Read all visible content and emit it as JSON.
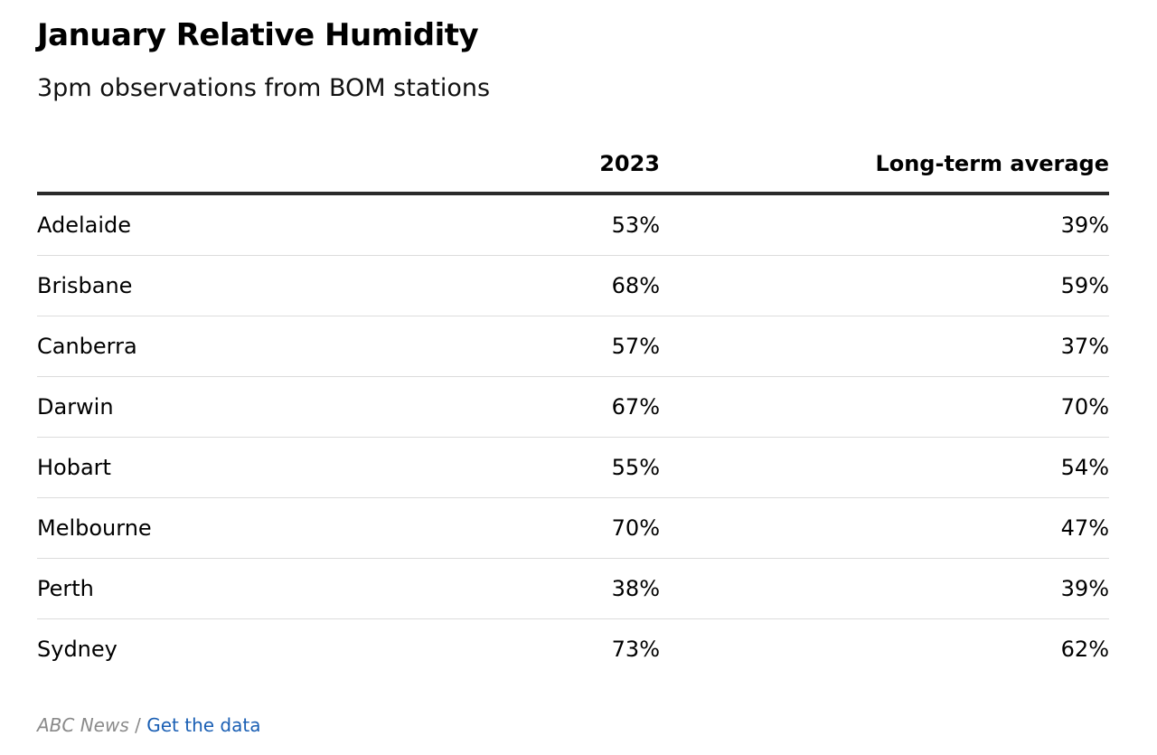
{
  "title": "January Relative Humidity",
  "subtitle": "3pm observations from BOM stations",
  "chart_data": {
    "type": "table",
    "title": "January Relative Humidity",
    "subtitle": "3pm observations from BOM stations",
    "columns": [
      "",
      "2023",
      "Long-term average"
    ],
    "rows": [
      {
        "city": "Adelaide",
        "y2023": "53%",
        "avg": "39%"
      },
      {
        "city": "Brisbane",
        "y2023": "68%",
        "avg": "59%"
      },
      {
        "city": "Canberra",
        "y2023": "57%",
        "avg": "37%"
      },
      {
        "city": "Darwin",
        "y2023": "67%",
        "avg": "70%"
      },
      {
        "city": "Hobart",
        "y2023": "55%",
        "avg": "54%"
      },
      {
        "city": "Melbourne",
        "y2023": "70%",
        "avg": "47%"
      },
      {
        "city": "Perth",
        "y2023": "38%",
        "avg": "39%"
      },
      {
        "city": "Sydney",
        "y2023": "73%",
        "avg": "62%"
      }
    ]
  },
  "footer": {
    "source": "ABC News",
    "separator": "/",
    "link_label": "Get the data"
  },
  "colors": {
    "link": "#1a5fb4",
    "source_text": "#8a8a8a",
    "header_rule": "#2a2a2a",
    "row_rule": "#dcdcdc"
  }
}
